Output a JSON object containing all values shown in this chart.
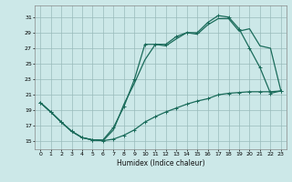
{
  "xlabel": "Humidex (Indice chaleur)",
  "background_color": "#cce8e8",
  "grid_color": "#99bbbb",
  "line_color": "#1a6b5a",
  "xlim": [
    -0.5,
    23.5
  ],
  "ylim": [
    14.0,
    32.5
  ],
  "xticks": [
    0,
    1,
    2,
    3,
    4,
    5,
    6,
    7,
    8,
    9,
    10,
    11,
    12,
    13,
    14,
    15,
    16,
    17,
    18,
    19,
    20,
    21,
    22,
    23
  ],
  "yticks": [
    15,
    17,
    19,
    21,
    23,
    25,
    27,
    29,
    31
  ],
  "curve1_x": [
    0,
    1,
    2,
    3,
    4,
    5,
    6,
    7,
    8,
    9,
    10,
    11,
    12,
    13,
    14,
    15,
    16,
    17,
    18,
    19,
    20,
    21,
    22,
    23
  ],
  "curve1_y": [
    20.0,
    18.8,
    17.5,
    16.3,
    15.5,
    15.2,
    15.1,
    15.3,
    15.8,
    16.5,
    17.5,
    18.2,
    18.8,
    19.3,
    19.8,
    20.2,
    20.5,
    21.0,
    21.2,
    21.3,
    21.4,
    21.4,
    21.4,
    21.5
  ],
  "curve2_x": [
    0,
    1,
    2,
    3,
    4,
    5,
    6,
    7,
    8,
    9,
    10,
    11,
    12,
    13,
    14,
    15,
    16,
    17,
    18,
    19,
    20,
    21,
    22,
    23
  ],
  "curve2_y": [
    20.0,
    18.8,
    17.5,
    16.3,
    15.5,
    15.2,
    15.2,
    16.8,
    19.5,
    23.0,
    27.5,
    27.5,
    27.5,
    28.5,
    29.0,
    29.0,
    30.3,
    31.2,
    31.0,
    29.5,
    27.0,
    24.5,
    21.2,
    21.5
  ],
  "curve3_x": [
    0,
    1,
    2,
    3,
    4,
    5,
    6,
    7,
    8,
    9,
    10,
    11,
    12,
    13,
    14,
    15,
    16,
    17,
    18,
    19,
    20,
    21,
    22,
    23
  ],
  "curve3_y": [
    20.0,
    18.8,
    17.5,
    16.3,
    15.5,
    15.2,
    15.1,
    16.5,
    19.8,
    22.5,
    25.5,
    27.5,
    27.3,
    28.2,
    29.0,
    28.8,
    30.0,
    30.8,
    30.8,
    29.2,
    29.5,
    27.3,
    27.0,
    21.5
  ]
}
